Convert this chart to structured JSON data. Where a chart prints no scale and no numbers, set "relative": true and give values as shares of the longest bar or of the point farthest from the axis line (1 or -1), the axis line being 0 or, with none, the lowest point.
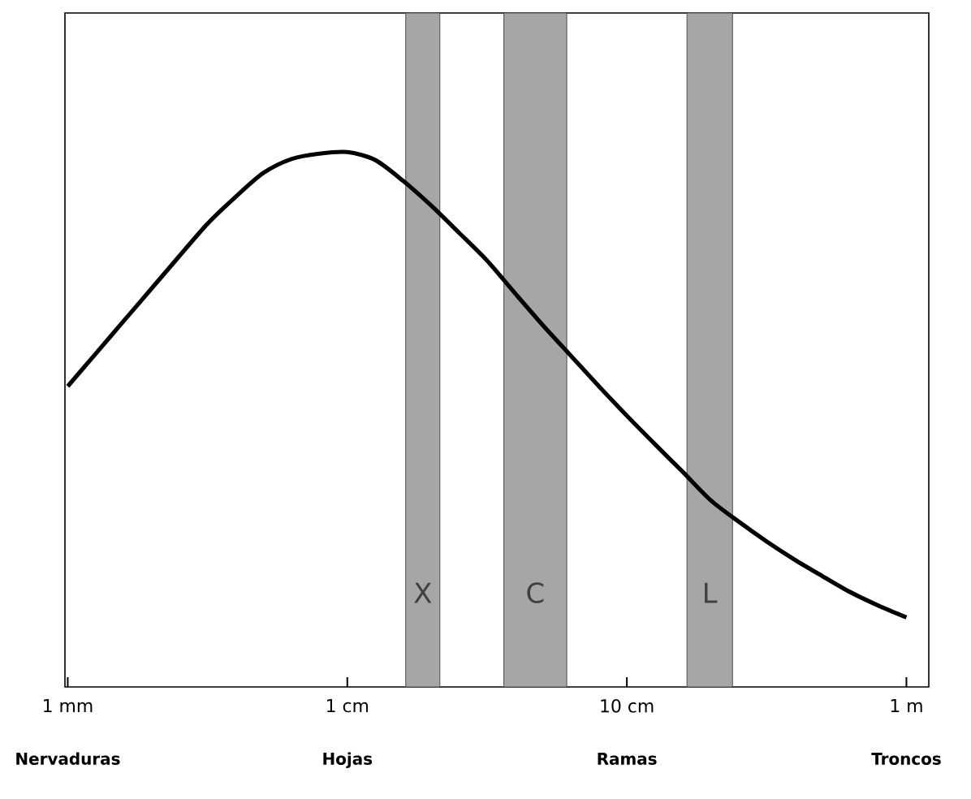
{
  "chart_data": {
    "type": "line",
    "relative": true,
    "color": "#000000",
    "categories": [
      "1 mm",
      null,
      null,
      null,
      null,
      null,
      null,
      null,
      null,
      null,
      "1 cm",
      null,
      null,
      null,
      null,
      null,
      null,
      null,
      null,
      null,
      "10 cm",
      null,
      null,
      null,
      null,
      null,
      null,
      null,
      null,
      null,
      "1 m"
    ],
    "values": [
      0.562,
      0.623,
      0.684,
      0.745,
      0.806,
      0.866,
      0.916,
      0.961,
      0.987,
      0.997,
      1.0,
      0.985,
      0.946,
      0.9,
      0.849,
      0.797,
      0.736,
      0.676,
      0.619,
      0.562,
      0.507,
      0.454,
      0.402,
      0.349,
      0.309,
      0.272,
      0.238,
      0.207,
      0.177,
      0.152,
      0.13
    ],
    "annotations": [
      "X",
      "C",
      "L",
      "Nervaduras",
      "Hojas",
      "Ramas",
      "Troncos"
    ]
  }
}
